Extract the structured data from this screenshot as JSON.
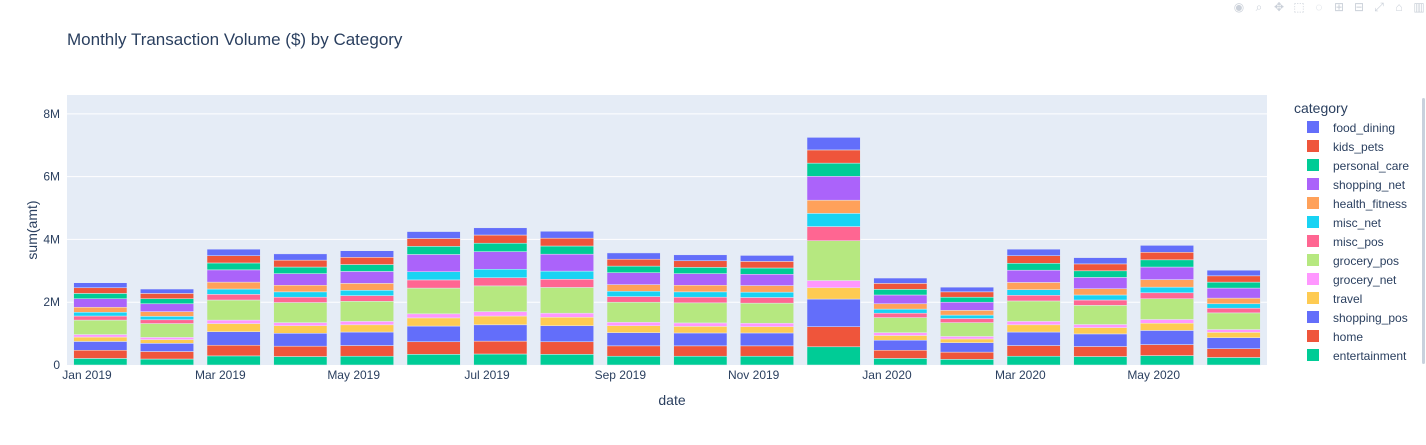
{
  "toolbar": {
    "icons": [
      "camera-icon",
      "zoom-icon",
      "pan-icon",
      "box-select-icon",
      "lasso-icon",
      "zoom-in-icon",
      "zoom-out-icon",
      "autoscale-icon",
      "home-icon",
      "plotly-logo-icon"
    ]
  },
  "chart_data": {
    "type": "bar",
    "barmode": "stack",
    "title": "Monthly Transaction Volume ($) by Category",
    "xlabel": "date",
    "ylabel": "sum(amt)",
    "ylim": [
      0,
      8600000
    ],
    "yticks": [
      0,
      2000000,
      4000000,
      6000000,
      8000000
    ],
    "ytick_labels": [
      "0",
      "2M",
      "4M",
      "6M",
      "8M"
    ],
    "xtick_labels": [
      "Jan 2019",
      "Mar 2019",
      "May 2019",
      "Jul 2019",
      "Sep 2019",
      "Nov 2019",
      "Jan 2020",
      "Mar 2020",
      "May 2020"
    ],
    "xtick_category_index": [
      0,
      2,
      4,
      6,
      8,
      10,
      12,
      14,
      16
    ],
    "categories": [
      "2019-01",
      "2019-02",
      "2019-03",
      "2019-04",
      "2019-05",
      "2019-06",
      "2019-07",
      "2019-08",
      "2019-09",
      "2019-10",
      "2019-11",
      "2019-12",
      "2020-01",
      "2020-02",
      "2020-03",
      "2020-04",
      "2020-05",
      "2020-06"
    ],
    "legend_title": "category",
    "legend_position": "right",
    "grid": true,
    "plot_bgcolor": "#e5ecf6",
    "series": [
      {
        "name": "entertainment",
        "color": "#00cc96",
        "values": [
          210000,
          190000,
          290000,
          270000,
          280000,
          340000,
          350000,
          340000,
          280000,
          280000,
          280000,
          580000,
          210000,
          180000,
          280000,
          270000,
          300000,
          240000
        ]
      },
      {
        "name": "home",
        "color": "#ef553b",
        "values": [
          260000,
          240000,
          340000,
          330000,
          340000,
          400000,
          410000,
          400000,
          330000,
          330000,
          330000,
          640000,
          260000,
          230000,
          340000,
          320000,
          350000,
          280000
        ]
      },
      {
        "name": "shopping_pos",
        "color": "#636efa",
        "values": [
          280000,
          260000,
          430000,
          410000,
          430000,
          500000,
          520000,
          510000,
          420000,
          410000,
          410000,
          880000,
          320000,
          300000,
          430000,
          400000,
          450000,
          350000
        ]
      },
      {
        "name": "travel",
        "color": "#fecb52",
        "values": [
          140000,
          120000,
          260000,
          240000,
          230000,
          260000,
          280000,
          270000,
          220000,
          210000,
          200000,
          360000,
          150000,
          120000,
          230000,
          200000,
          230000,
          170000
        ]
      },
      {
        "name": "grocery_net",
        "color": "#ff97ff",
        "values": [
          80000,
          70000,
          110000,
          100000,
          110000,
          130000,
          140000,
          130000,
          110000,
          110000,
          110000,
          230000,
          90000,
          80000,
          110000,
          100000,
          120000,
          90000
        ]
      },
      {
        "name": "grocery_pos",
        "color": "#b6e880",
        "values": [
          460000,
          440000,
          640000,
          640000,
          640000,
          820000,
          820000,
          820000,
          640000,
          640000,
          640000,
          1270000,
          480000,
          440000,
          650000,
          610000,
          660000,
          530000
        ]
      },
      {
        "name": "misc_pos",
        "color": "#ff6692",
        "values": [
          130000,
          120000,
          180000,
          170000,
          180000,
          260000,
          260000,
          260000,
          180000,
          180000,
          180000,
          450000,
          140000,
          130000,
          180000,
          170000,
          190000,
          150000
        ]
      },
      {
        "name": "misc_net",
        "color": "#19d3f3",
        "values": [
          120000,
          110000,
          170000,
          170000,
          170000,
          260000,
          270000,
          260000,
          170000,
          170000,
          170000,
          420000,
          130000,
          110000,
          180000,
          160000,
          180000,
          140000
        ]
      },
      {
        "name": "health_fitness",
        "color": "#ffa15a",
        "values": [
          160000,
          150000,
          220000,
          210000,
          220000,
          0,
          0,
          0,
          210000,
          210000,
          210000,
          420000,
          170000,
          150000,
          230000,
          200000,
          240000,
          180000
        ]
      },
      {
        "name": "shopping_net",
        "color": "#ab63fa",
        "values": [
          270000,
          250000,
          390000,
          370000,
          380000,
          550000,
          560000,
          540000,
          380000,
          370000,
          360000,
          760000,
          280000,
          260000,
          390000,
          360000,
          400000,
          320000
        ]
      },
      {
        "name": "personal_care",
        "color": "#00cc96",
        "values": [
          170000,
          160000,
          220000,
          210000,
          220000,
          260000,
          270000,
          260000,
          210000,
          200000,
          200000,
          420000,
          180000,
          160000,
          220000,
          210000,
          230000,
          190000
        ]
      },
      {
        "name": "kids_pets",
        "color": "#ef553b",
        "values": [
          180000,
          170000,
          230000,
          220000,
          230000,
          250000,
          260000,
          250000,
          220000,
          210000,
          210000,
          420000,
          190000,
          170000,
          240000,
          220000,
          240000,
          200000
        ]
      },
      {
        "name": "food_dining",
        "color": "#636efa",
        "values": [
          160000,
          140000,
          210000,
          200000,
          210000,
          220000,
          230000,
          220000,
          200000,
          190000,
          190000,
          400000,
          170000,
          150000,
          210000,
          200000,
          220000,
          180000
        ]
      }
    ]
  }
}
